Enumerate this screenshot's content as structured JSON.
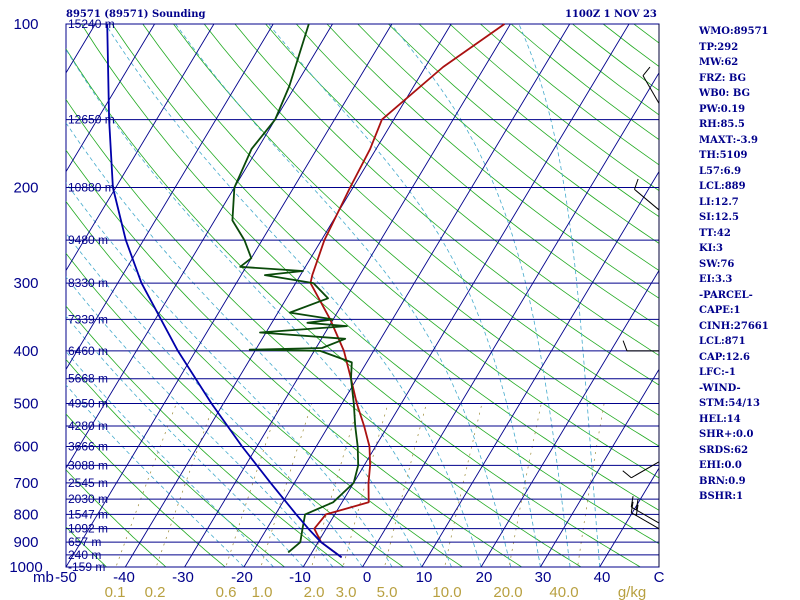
{
  "header": {
    "title": "89571 (89571) Sounding",
    "time": "1100Z  1 NOV 23"
  },
  "indices": [
    "WMO:89571",
    "TP:292",
    "MW:62",
    "FRZ: BG",
    "WB0: BG",
    "PW:0.19",
    "RH:85.5",
    "MAXT:-3.9",
    "TH:5109",
    "L57:6.9",
    "LCL:889",
    "LI:12.7",
    "SI:12.5",
    "TT:42",
    "KI:3",
    "SW:76",
    "EI:3.3",
    "-PARCEL-",
    "CAPE:1",
    "CINH:27661",
    "LCL:871",
    "CAP:12.6",
    "LFC:-1",
    "-WIND-",
    "STM:54/13",
    "HEL:14",
    "SHR+:0.0",
    "SRDS:62",
    "EHI:0.0",
    "BRN:0.9",
    "BSHR:1"
  ],
  "colors": {
    "isobar": "#00008b",
    "isotherm": "#00008b",
    "dry_adiabat": "#22aa22",
    "moist_adiabat": "#44aacc",
    "mixing_ratio": "#998833",
    "temperature": "#aa1111",
    "dewpoint": "#0a4a0a",
    "parcel": "#0000aa",
    "text": "#00008b",
    "mr_text": "#b8a040"
  },
  "chart_data": {
    "type": "line",
    "title": "89571 (89571) Sounding",
    "y_axis_label": "mb",
    "x_axis_label": "C",
    "y_scale": "log",
    "xlim": [
      -50,
      50
    ],
    "ylim": [
      1000,
      100
    ],
    "pressure_ticks": [
      100,
      200,
      300,
      400,
      500,
      600,
      700,
      800,
      900,
      1000
    ],
    "temperature_ticks": [
      -50,
      -40,
      -30,
      -20,
      -10,
      0,
      10,
      20,
      30,
      40
    ],
    "height_levels": [
      {
        "p": 100,
        "label": "15240 m"
      },
      {
        "p": 150,
        "label": "12650 m"
      },
      {
        "p": 200,
        "label": "10880 m"
      },
      {
        "p": 250,
        "label": "9480 m"
      },
      {
        "p": 300,
        "label": "8330 m"
      },
      {
        "p": 350,
        "label": "7339 m"
      },
      {
        "p": 400,
        "label": "6460 m"
      },
      {
        "p": 450,
        "label": "5668 m"
      },
      {
        "p": 500,
        "label": "4950 m"
      },
      {
        "p": 550,
        "label": "4280 m"
      },
      {
        "p": 600,
        "label": "3666 m"
      },
      {
        "p": 650,
        "label": "3088 m"
      },
      {
        "p": 700,
        "label": "2545 m"
      },
      {
        "p": 750,
        "label": "2030 m"
      },
      {
        "p": 800,
        "label": "1547 m"
      },
      {
        "p": 850,
        "label": "1092 m"
      },
      {
        "p": 900,
        "label": "657 m"
      },
      {
        "p": 950,
        "label": "240 m"
      },
      {
        "p": 1000,
        "label": "-159 m"
      }
    ],
    "mixing_ratio_labels": [
      "0.1",
      "0.2",
      "0.6",
      "1.0",
      "2.0",
      "3.0",
      "5.0",
      "10.0",
      "20.0",
      "40.0"
    ],
    "mixing_ratio_unit": "g/kg",
    "mixing_ratio_values": [
      0.1,
      0.2,
      0.6,
      1.0,
      2.0,
      3.0,
      5.0,
      10.0,
      20.0,
      40.0
    ],
    "series": [
      {
        "key": "temperature",
        "points": [
          {
            "p": 960,
            "t": -4.5
          },
          {
            "p": 900,
            "t": -9.5
          },
          {
            "p": 850,
            "t": -12
          },
          {
            "p": 800,
            "t": -11.5
          },
          {
            "p": 760,
            "t": -5.5
          },
          {
            "p": 700,
            "t": -7.5
          },
          {
            "p": 650,
            "t": -9
          },
          {
            "p": 600,
            "t": -11
          },
          {
            "p": 550,
            "t": -14
          },
          {
            "p": 500,
            "t": -17.5
          },
          {
            "p": 450,
            "t": -21
          },
          {
            "p": 400,
            "t": -25
          },
          {
            "p": 350,
            "t": -30.5
          },
          {
            "p": 300,
            "t": -37.5
          },
          {
            "p": 290,
            "t": -38
          },
          {
            "p": 250,
            "t": -39.5
          },
          {
            "p": 200,
            "t": -40.5
          },
          {
            "p": 170,
            "t": -41
          },
          {
            "p": 150,
            "t": -42
          },
          {
            "p": 120,
            "t": -37
          },
          {
            "p": 100,
            "t": -31
          }
        ]
      },
      {
        "key": "dewpoint",
        "points": [
          {
            "p": 940,
            "t": -14
          },
          {
            "p": 900,
            "t": -13
          },
          {
            "p": 850,
            "t": -14
          },
          {
            "p": 800,
            "t": -15
          },
          {
            "p": 760,
            "t": -11.5
          },
          {
            "p": 700,
            "t": -10
          },
          {
            "p": 650,
            "t": -11
          },
          {
            "p": 600,
            "t": -13
          },
          {
            "p": 550,
            "t": -15.5
          },
          {
            "p": 500,
            "t": -18
          },
          {
            "p": 450,
            "t": -21
          },
          {
            "p": 420,
            "t": -22.5
          },
          {
            "p": 400,
            "t": -29
          },
          {
            "p": 398,
            "t": -41
          },
          {
            "p": 395,
            "t": -29
          },
          {
            "p": 380,
            "t": -26
          },
          {
            "p": 370,
            "t": -41
          },
          {
            "p": 360,
            "t": -27
          },
          {
            "p": 355,
            "t": -34
          },
          {
            "p": 350,
            "t": -30
          },
          {
            "p": 340,
            "t": -38
          },
          {
            "p": 320,
            "t": -33
          },
          {
            "p": 300,
            "t": -37
          },
          {
            "p": 290,
            "t": -46
          },
          {
            "p": 285,
            "t": -40
          },
          {
            "p": 280,
            "t": -51
          },
          {
            "p": 270,
            "t": -50
          },
          {
            "p": 250,
            "t": -53
          },
          {
            "p": 230,
            "t": -57
          },
          {
            "p": 200,
            "t": -60
          },
          {
            "p": 170,
            "t": -61
          },
          {
            "p": 150,
            "t": -60
          },
          {
            "p": 130,
            "t": -61
          },
          {
            "p": 100,
            "t": -64
          }
        ]
      },
      {
        "key": "parcel",
        "points": [
          {
            "p": 960,
            "t": -4.5
          },
          {
            "p": 900,
            "t": -9.5
          },
          {
            "p": 850,
            "t": -13
          },
          {
            "p": 800,
            "t": -16.5
          },
          {
            "p": 700,
            "t": -24
          },
          {
            "p": 600,
            "t": -32.5
          },
          {
            "p": 500,
            "t": -42
          },
          {
            "p": 400,
            "t": -53
          },
          {
            "p": 300,
            "t": -66
          },
          {
            "p": 250,
            "t": -73
          },
          {
            "p": 200,
            "t": -80.5
          },
          {
            "p": 150,
            "t": -88
          },
          {
            "p": 100,
            "t": -98
          }
        ]
      }
    ],
    "wind_barbs": [
      {
        "p": 140,
        "dir": 330,
        "kt": 10
      },
      {
        "p": 220,
        "dir": 310,
        "kt": 10
      },
      {
        "p": 400,
        "dir": 270,
        "kt": 10
      },
      {
        "p": 640,
        "dir": 240,
        "kt": 10
      },
      {
        "p": 830,
        "dir": 300,
        "kt": 20
      },
      {
        "p": 850,
        "dir": 300,
        "kt": 20
      }
    ]
  }
}
